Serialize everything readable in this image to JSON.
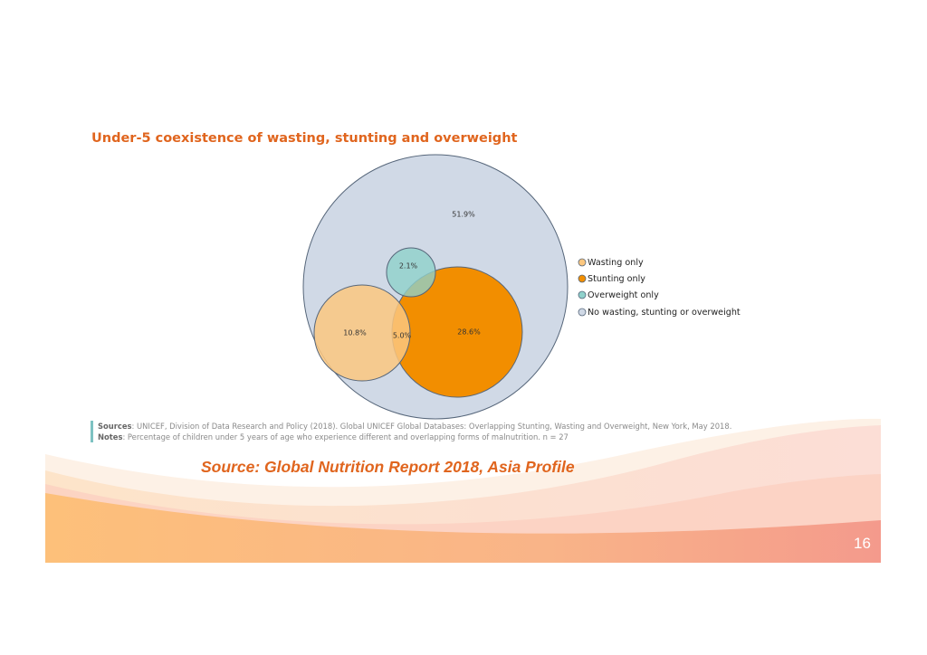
{
  "slide": {
    "source_caption": "Source: Global Nutrition Report 2018, Asia Profile",
    "page_number": "16",
    "colors": {
      "accent": "#e0651e",
      "band_left": "#fbc07a",
      "band_right": "#f4a090"
    }
  },
  "chart_data": {
    "type": "venn",
    "title": "Under-5 coexistence of wasting, stunting and overweight",
    "values": [
      {
        "label": "51.9%",
        "value": 51.9,
        "category": "No wasting, stunting or overweight"
      },
      {
        "label": "2.1%",
        "value": 2.1,
        "category": "Overweight only"
      },
      {
        "label": "10.8%",
        "value": 10.8,
        "category": "Wasting only"
      },
      {
        "label": "5.0%",
        "value": 5.0,
        "category": "Wasting and stunting"
      },
      {
        "label": "28.6%",
        "value": 28.6,
        "category": "Stunting only"
      }
    ],
    "legend": {
      "placement": "right",
      "items": [
        {
          "label": "Wasting only",
          "color": "#fcc77f"
        },
        {
          "label": "Stunting only",
          "color": "#f28e00"
        },
        {
          "label": "Overweight only",
          "color": "#8fd1cb"
        },
        {
          "label": "No wasting, stunting or overweight",
          "color": "#d0d9e6"
        }
      ]
    },
    "notes": {
      "sources_label": "Sources",
      "sources_text": ": UNICEF, Division of Data Research and Policy (2018). Global UNICEF Global Databases: Overlapping Stunting, Wasting and Overweight, New York, May 2018.",
      "notes_label": "Notes",
      "notes_text": ": Percentage of children under 5 years of age who experience different and overlapping forms of malnutrition. n = 27"
    }
  }
}
